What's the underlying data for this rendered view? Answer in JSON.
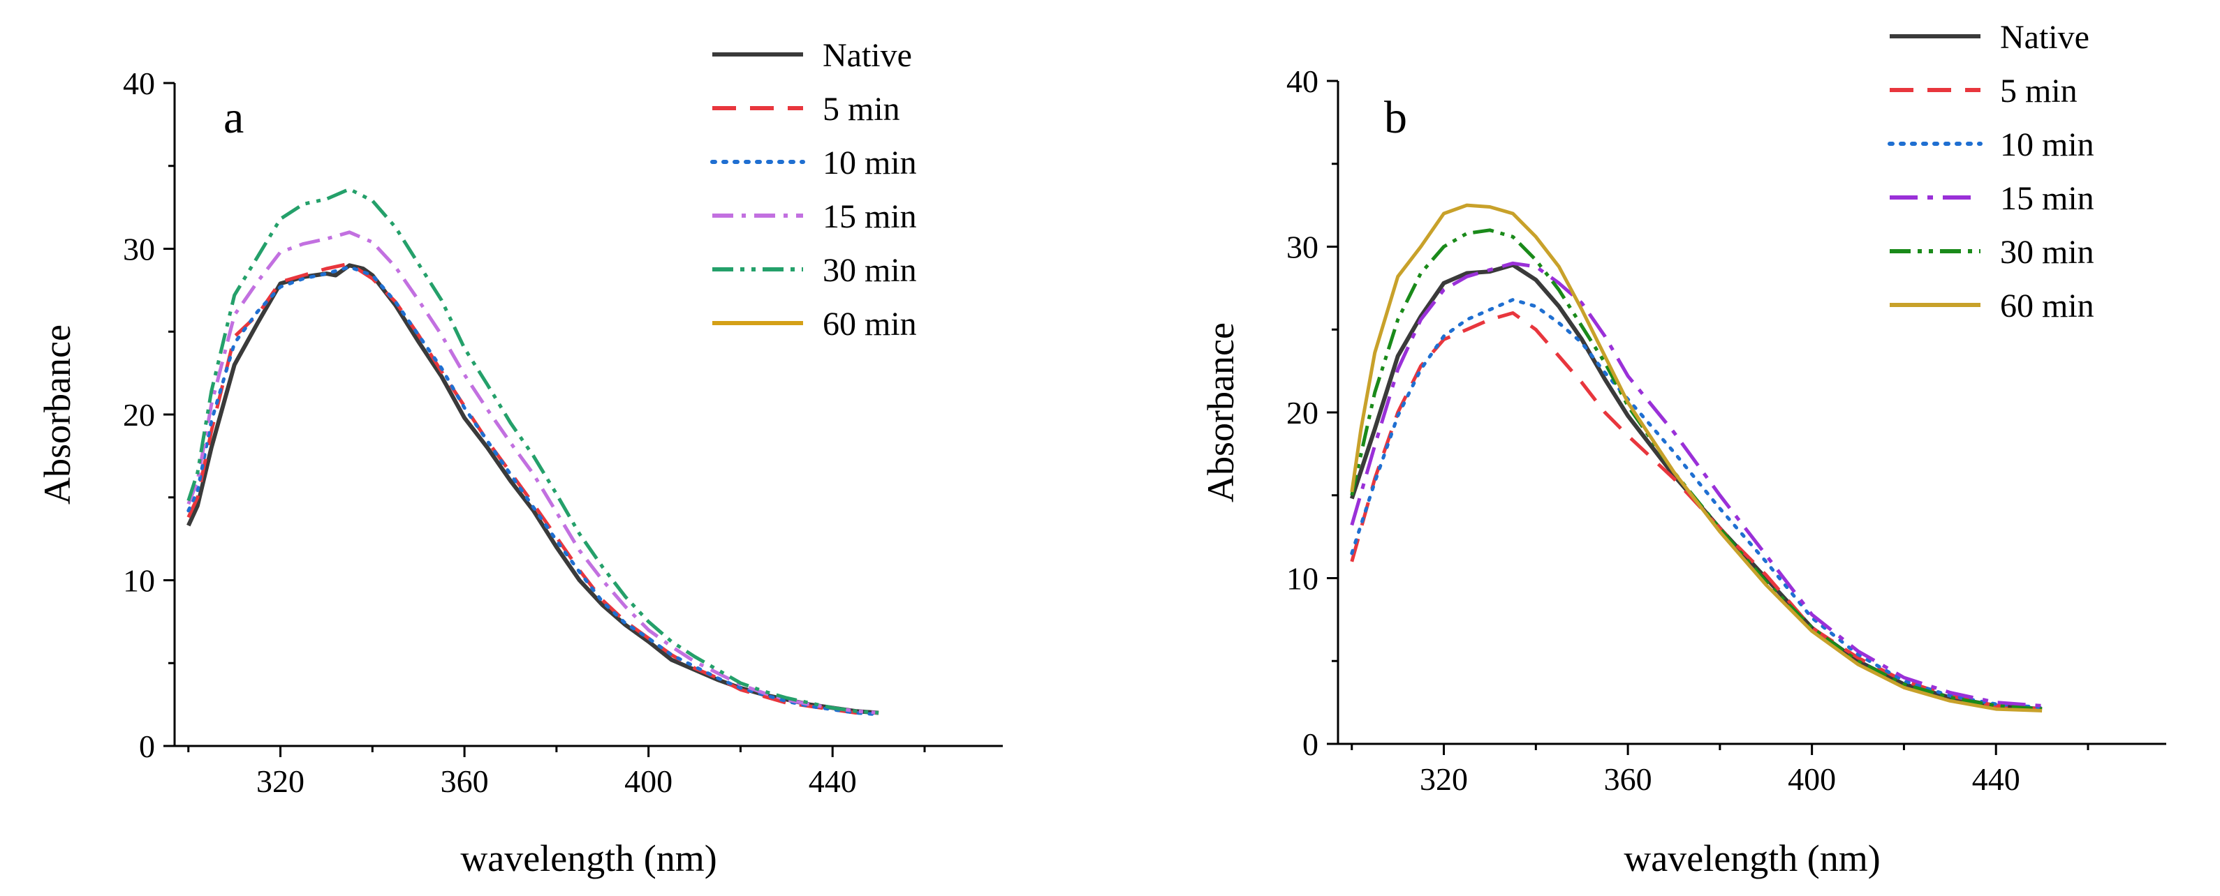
{
  "chart_data": [
    {
      "type": "line",
      "panel_label": "a",
      "xlabel": "wavelength (nm)",
      "ylabel": "Absorbance",
      "xlim": [
        297,
        477
      ],
      "ylim": [
        0,
        40
      ],
      "xticks": [
        320,
        360,
        400,
        440
      ],
      "yticks": [
        0,
        10,
        20,
        30,
        40
      ],
      "legend_position": "top-right",
      "grid": false,
      "series": [
        {
          "name": "Native",
          "color": "#3a3a3a",
          "dash": "solid",
          "x": [
            300,
            302,
            305,
            310,
            315,
            320,
            325,
            330,
            332,
            335,
            338,
            340,
            345,
            350,
            355,
            360,
            365,
            370,
            375,
            380,
            385,
            390,
            395,
            400,
            405,
            410,
            415,
            420,
            425,
            430,
            435,
            440,
            445,
            450
          ],
          "y": [
            13.3,
            14.5,
            18.0,
            23.0,
            25.5,
            27.9,
            28.3,
            28.5,
            28.4,
            29.0,
            28.8,
            28.4,
            26.6,
            24.4,
            22.3,
            19.8,
            18.0,
            16.0,
            14.2,
            12.0,
            10.0,
            8.5,
            7.3,
            6.3,
            5.2,
            4.6,
            4.0,
            3.5,
            3.1,
            2.8,
            2.5,
            2.3,
            2.1,
            2.0
          ]
        },
        {
          "name": "5 min",
          "color": "#e8363d",
          "dash": "dashed",
          "x": [
            300,
            302,
            305,
            310,
            315,
            320,
            325,
            330,
            335,
            340,
            345,
            350,
            355,
            360,
            365,
            370,
            375,
            380,
            385,
            390,
            395,
            400,
            405,
            410,
            415,
            420,
            425,
            430,
            435,
            440,
            445,
            450
          ],
          "y": [
            13.8,
            15.0,
            19.0,
            24.7,
            26.0,
            28.0,
            28.4,
            28.8,
            29.1,
            28.2,
            26.8,
            24.8,
            22.6,
            20.5,
            18.4,
            16.5,
            14.6,
            12.6,
            10.6,
            8.8,
            7.5,
            6.5,
            5.5,
            4.7,
            4.1,
            3.4,
            3.0,
            2.6,
            2.4,
            2.2,
            2.0,
            2.0
          ]
        },
        {
          "name": "10 min",
          "color": "#1f6fd1",
          "dash": "dotted",
          "x": [
            300,
            302,
            305,
            310,
            315,
            320,
            325,
            330,
            335,
            340,
            345,
            350,
            355,
            360,
            365,
            370,
            375,
            380,
            385,
            390,
            395,
            400,
            405,
            410,
            415,
            420,
            425,
            430,
            435,
            440,
            445,
            450
          ],
          "y": [
            14.2,
            15.4,
            19.6,
            24.3,
            26.2,
            27.7,
            28.2,
            28.5,
            28.9,
            28.4,
            26.8,
            24.8,
            22.8,
            20.4,
            18.4,
            16.4,
            14.4,
            12.4,
            10.5,
            8.7,
            7.4,
            6.5,
            5.5,
            4.8,
            4.1,
            3.5,
            3.1,
            2.7,
            2.4,
            2.2,
            2.0,
            1.9
          ]
        },
        {
          "name": "15 min",
          "color": "#c270e0",
          "dash": "dashdot",
          "x": [
            300,
            302,
            305,
            310,
            315,
            320,
            325,
            330,
            335,
            340,
            345,
            350,
            355,
            360,
            365,
            370,
            375,
            380,
            385,
            390,
            395,
            400,
            405,
            410,
            415,
            420,
            425,
            430,
            435,
            440,
            445,
            450
          ],
          "y": [
            14.6,
            16.0,
            20.6,
            26.0,
            28.0,
            29.8,
            30.3,
            30.6,
            31.0,
            30.4,
            28.9,
            26.9,
            24.8,
            22.4,
            20.3,
            18.3,
            16.4,
            14.1,
            11.8,
            10.0,
            8.4,
            7.0,
            6.0,
            5.1,
            4.4,
            3.7,
            3.2,
            2.8,
            2.5,
            2.3,
            2.1,
            2.0
          ]
        },
        {
          "name": "30 min",
          "color": "#24a06a",
          "dash": "dashdotdot",
          "x": [
            300,
            302,
            305,
            310,
            315,
            320,
            325,
            330,
            335,
            340,
            345,
            350,
            355,
            360,
            365,
            370,
            375,
            380,
            385,
            390,
            395,
            400,
            405,
            410,
            415,
            420,
            425,
            430,
            435,
            440,
            445,
            450
          ],
          "y": [
            14.8,
            16.5,
            21.4,
            27.2,
            29.5,
            31.8,
            32.7,
            33.0,
            33.6,
            32.9,
            31.3,
            29.1,
            26.9,
            24.0,
            21.8,
            19.5,
            17.5,
            15.2,
            12.8,
            10.8,
            9.0,
            7.5,
            6.3,
            5.4,
            4.6,
            3.8,
            3.3,
            2.9,
            2.6,
            2.3,
            2.1,
            2.0
          ]
        },
        {
          "name": "60 min",
          "color": "#d4a017",
          "dash": "solid",
          "x": [],
          "y": []
        }
      ]
    },
    {
      "type": "line",
      "panel_label": "b",
      "xlabel": "wavelength (nm)",
      "ylabel": "Absorbance",
      "xlim": [
        297,
        477
      ],
      "ylim": [
        0,
        40
      ],
      "xticks": [
        320,
        360,
        400,
        440
      ],
      "yticks": [
        0,
        10,
        20,
        30,
        40
      ],
      "legend_position": "top-right",
      "grid": false,
      "series": [
        {
          "name": "Native",
          "color": "#3a3a3a",
          "dash": "solid",
          "x": [
            300,
            305,
            310,
            315,
            320,
            325,
            330,
            335,
            340,
            345,
            350,
            355,
            360,
            370,
            380,
            390,
            400,
            410,
            420,
            430,
            440,
            450
          ],
          "y": [
            14.8,
            19.0,
            23.4,
            25.8,
            27.8,
            28.4,
            28.5,
            28.9,
            28.0,
            26.4,
            24.4,
            22.0,
            19.8,
            16.2,
            13.0,
            10.0,
            7.0,
            5.0,
            3.6,
            2.8,
            2.3,
            2.1
          ]
        },
        {
          "name": "5 min",
          "color": "#e8363d",
          "dash": "dashed",
          "x": [
            300,
            305,
            310,
            315,
            320,
            325,
            330,
            335,
            340,
            345,
            350,
            355,
            360,
            370,
            380,
            390,
            400,
            410,
            420,
            430,
            440,
            450
          ],
          "y": [
            11.0,
            16.0,
            20.0,
            22.8,
            24.4,
            25.0,
            25.6,
            26.0,
            25.0,
            23.4,
            21.8,
            20.0,
            18.6,
            16.0,
            13.0,
            10.2,
            7.0,
            5.2,
            3.8,
            2.9,
            2.3,
            2.1
          ]
        },
        {
          "name": "10 min",
          "color": "#1f6fd1",
          "dash": "dotted",
          "x": [
            300,
            305,
            310,
            315,
            320,
            325,
            330,
            335,
            340,
            345,
            350,
            355,
            360,
            370,
            380,
            390,
            400,
            410,
            420,
            430,
            440,
            450
          ],
          "y": [
            11.5,
            15.8,
            19.8,
            22.6,
            24.6,
            25.6,
            26.2,
            26.8,
            26.4,
            25.4,
            24.2,
            22.4,
            20.8,
            17.6,
            14.2,
            11.0,
            7.6,
            5.4,
            3.8,
            2.9,
            2.4,
            2.2
          ]
        },
        {
          "name": "15 min",
          "color": "#9a30d8",
          "dash": "longdashdot",
          "x": [
            300,
            305,
            310,
            315,
            320,
            325,
            330,
            335,
            340,
            345,
            350,
            355,
            360,
            370,
            380,
            390,
            400,
            410,
            420,
            430,
            440,
            450
          ],
          "y": [
            13.2,
            18.0,
            22.6,
            25.6,
            27.4,
            28.2,
            28.6,
            29.0,
            28.8,
            27.8,
            26.6,
            24.6,
            22.2,
            18.8,
            15.0,
            11.4,
            7.8,
            5.6,
            4.0,
            3.1,
            2.5,
            2.3
          ]
        },
        {
          "name": "30 min",
          "color": "#1a8a1a",
          "dash": "dashdotdot",
          "x": [
            300,
            305,
            310,
            315,
            320,
            325,
            330,
            335,
            340,
            345,
            350,
            355,
            360,
            370,
            380,
            390,
            400,
            410,
            420,
            430,
            440,
            450
          ],
          "y": [
            15.0,
            21.2,
            25.6,
            28.4,
            30.0,
            30.8,
            31.0,
            30.6,
            29.2,
            27.4,
            25.2,
            23.0,
            20.4,
            16.4,
            13.0,
            9.8,
            7.0,
            5.0,
            3.6,
            2.8,
            2.3,
            2.1
          ]
        },
        {
          "name": "60 min",
          "color": "#c8a12a",
          "dash": "solid",
          "x": [
            300,
            302,
            305,
            310,
            315,
            320,
            325,
            330,
            335,
            340,
            345,
            350,
            355,
            360,
            370,
            380,
            390,
            400,
            410,
            420,
            430,
            440,
            450
          ],
          "y": [
            15.2,
            19.0,
            23.6,
            28.2,
            30.0,
            32.0,
            32.5,
            32.4,
            32.0,
            30.6,
            28.8,
            26.2,
            23.4,
            20.6,
            16.4,
            12.8,
            9.6,
            6.8,
            4.8,
            3.4,
            2.6,
            2.1,
            2.0
          ]
        }
      ]
    }
  ]
}
